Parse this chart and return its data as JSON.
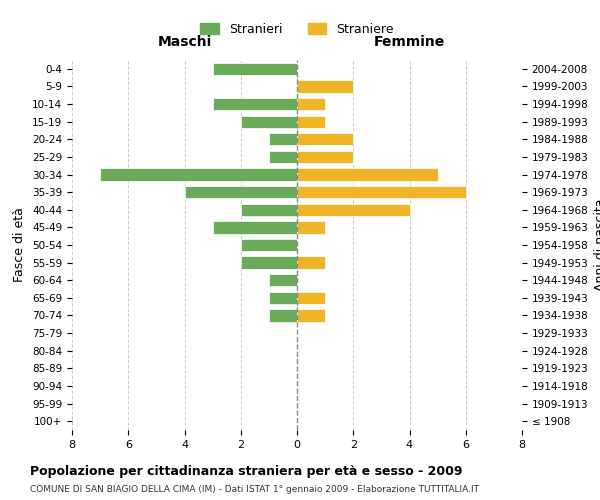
{
  "age_groups": [
    "100+",
    "95-99",
    "90-94",
    "85-89",
    "80-84",
    "75-79",
    "70-74",
    "65-69",
    "60-64",
    "55-59",
    "50-54",
    "45-49",
    "40-44",
    "35-39",
    "30-34",
    "25-29",
    "20-24",
    "15-19",
    "10-14",
    "5-9",
    "0-4"
  ],
  "birth_years": [
    "≤ 1908",
    "1909-1913",
    "1914-1918",
    "1919-1923",
    "1924-1928",
    "1929-1933",
    "1934-1938",
    "1939-1943",
    "1944-1948",
    "1949-1953",
    "1954-1958",
    "1959-1963",
    "1964-1968",
    "1969-1973",
    "1974-1978",
    "1979-1983",
    "1984-1988",
    "1989-1993",
    "1994-1998",
    "1999-2003",
    "2004-2008"
  ],
  "stranieri": [
    0,
    0,
    0,
    0,
    0,
    0,
    1,
    1,
    1,
    2,
    2,
    3,
    2,
    4,
    7,
    1,
    1,
    2,
    3,
    0,
    3
  ],
  "straniere": [
    0,
    0,
    0,
    0,
    0,
    0,
    1,
    1,
    0,
    1,
    0,
    1,
    4,
    6,
    5,
    2,
    2,
    1,
    1,
    2,
    0
  ],
  "color_stranieri": "#6aaa5a",
  "color_straniere": "#f0b429",
  "title": "Popolazione per cittadinanza straniera per età e sesso - 2009",
  "subtitle": "COMUNE DI SAN BIAGIO DELLA CIMA (IM) - Dati ISTAT 1° gennaio 2009 - Elaborazione TUTTITALIA.IT",
  "xlabel_left": "Maschi",
  "xlabel_right": "Femmine",
  "ylabel_left": "Fasce di età",
  "ylabel_right": "Anni di nascita",
  "legend_stranieri": "Stranieri",
  "legend_straniere": "Straniere",
  "xlim": 8,
  "background_color": "#ffffff",
  "grid_color": "#cccccc"
}
